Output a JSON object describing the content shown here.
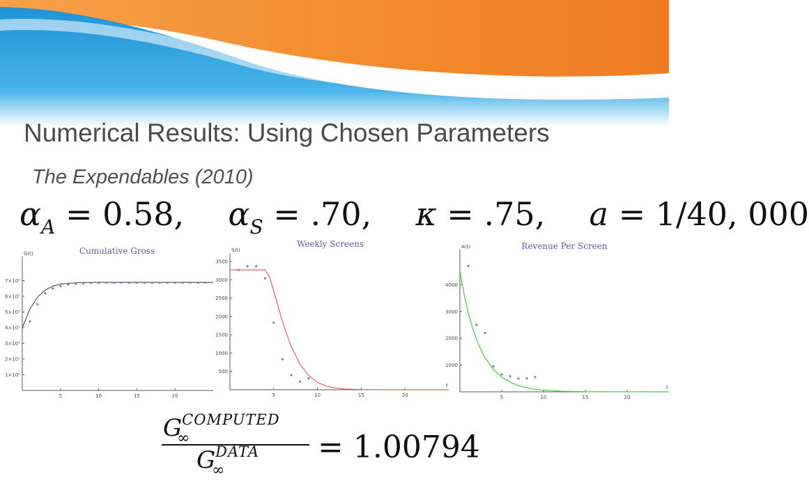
{
  "slide": {
    "title": "Numerical Results: Using Chosen Parameters",
    "subtitle": "The Expendables (2010)",
    "params": {
      "alpha": "α",
      "alpha_a_sub": "A",
      "alpha_a_value": "= 0.58,",
      "alpha_s_sub": "S",
      "alpha_s_value": "= .70,",
      "kappa": "κ",
      "kappa_value": "= .75,",
      "a": "a",
      "a_value": "= 1/40, 000"
    },
    "ratio": {
      "numerator_base": "G",
      "numerator_sub": "∞",
      "numerator_sup": "COMPUTED",
      "denominator_base": "G",
      "denominator_sub": "∞",
      "denominator_sup": "DATA",
      "value": "= 1.00794"
    }
  },
  "colors": {
    "banner_blue": "#2e9fd9",
    "banner_orange": "#f0862a",
    "title_gray": "#4a4a4a",
    "chart_title": "#5b5ba6",
    "gross_curve": "#555555",
    "screens_curve": "#e06060",
    "revenue_curve": "#40d040",
    "points": "#7080b0"
  },
  "chart_data": [
    {
      "type": "scatter",
      "title": "Cumulative Gross",
      "ylabel": "G(t)",
      "xlabel": "",
      "xlim": [
        0,
        25
      ],
      "ylim": [
        0,
        80000000
      ],
      "xticks": [
        "5",
        "10",
        "15",
        "20"
      ],
      "xtick_values": [
        5,
        10,
        15,
        20
      ],
      "yticks": [
        "1×10⁷",
        "2×10⁷",
        "3×10⁷",
        "4×10⁷",
        "5×10⁷",
        "6×10⁷",
        "7×10⁷"
      ],
      "ytick_values": [
        10000000,
        20000000,
        30000000,
        40000000,
        50000000,
        60000000,
        70000000
      ],
      "points": {
        "x": [
          1,
          2,
          3,
          4,
          5,
          6,
          7,
          8,
          9,
          10,
          11,
          12,
          13,
          14,
          15,
          16,
          17,
          18,
          19,
          20,
          21,
          22,
          23,
          24
        ],
        "y": [
          44000000,
          55000000,
          62000000,
          65000000,
          66500000,
          67500000,
          68000000,
          68300000,
          68500000,
          68600000,
          68700000,
          68700000,
          68700000,
          68700000,
          68700000,
          68700000,
          68700000,
          68700000,
          68700000,
          68700000,
          68700000,
          68700000,
          68700000,
          68700000
        ]
      },
      "curve": {
        "x": [
          0,
          1,
          2,
          3,
          4,
          5,
          6,
          7,
          8,
          10,
          12,
          15,
          20,
          25
        ],
        "y": [
          40000000,
          52000000,
          59500000,
          64000000,
          66500000,
          67800000,
          68300000,
          68600000,
          68800000,
          68900000,
          68900000,
          68900000,
          68900000,
          68900000
        ]
      }
    },
    {
      "type": "scatter",
      "title": "Weekly Screens",
      "ylabel": "S(t)",
      "xlabel": "t",
      "xlim": [
        0,
        25
      ],
      "ylim": [
        0,
        3500
      ],
      "xticks": [
        "5",
        "10",
        "15",
        "20"
      ],
      "xtick_values": [
        5,
        10,
        15,
        20
      ],
      "yticks": [
        "500",
        "1000",
        "1500",
        "2000",
        "2500",
        "3000",
        "3500"
      ],
      "ytick_values": [
        500,
        1000,
        1500,
        2000,
        2500,
        3000,
        3500
      ],
      "points": {
        "x": [
          1,
          2,
          3,
          4,
          5,
          6,
          7,
          8,
          9
        ],
        "y": [
          3270,
          3370,
          3370,
          3040,
          1830,
          830,
          400,
          220,
          310
        ]
      },
      "curve": {
        "x": [
          0,
          1,
          2,
          3,
          4,
          4.5,
          5,
          6,
          7,
          8,
          9,
          10,
          11,
          12,
          13,
          15,
          18,
          25
        ],
        "y": [
          3270,
          3270,
          3270,
          3270,
          3270,
          3100,
          2700,
          1850,
          1180,
          700,
          390,
          200,
          100,
          50,
          20,
          5,
          0,
          0
        ]
      }
    },
    {
      "type": "scatter",
      "title": "Revenue Per Screen",
      "ylabel": "A(t)",
      "xlabel": "t",
      "xlim": [
        0,
        25
      ],
      "ylim": [
        0,
        5000
      ],
      "xticks": [
        "5",
        "10",
        "15",
        "20"
      ],
      "xtick_values": [
        5,
        10,
        15,
        20
      ],
      "yticks": [
        "1000",
        "2000",
        "3000",
        "4000"
      ],
      "ytick_values": [
        1000,
        2000,
        3000,
        4000
      ],
      "points": {
        "x": [
          1,
          2,
          3,
          4,
          5,
          6,
          7,
          8,
          9
        ],
        "y": [
          4700,
          2500,
          2200,
          950,
          650,
          580,
          500,
          500,
          550
        ]
      },
      "curve": {
        "x": [
          0,
          0.5,
          1,
          1.5,
          2,
          2.5,
          3,
          4,
          5,
          6,
          7,
          8,
          9,
          10,
          12,
          15,
          25
        ],
        "y": [
          4500,
          3650,
          2950,
          2400,
          1950,
          1580,
          1280,
          840,
          550,
          360,
          230,
          150,
          95,
          60,
          25,
          5,
          0
        ]
      }
    }
  ]
}
